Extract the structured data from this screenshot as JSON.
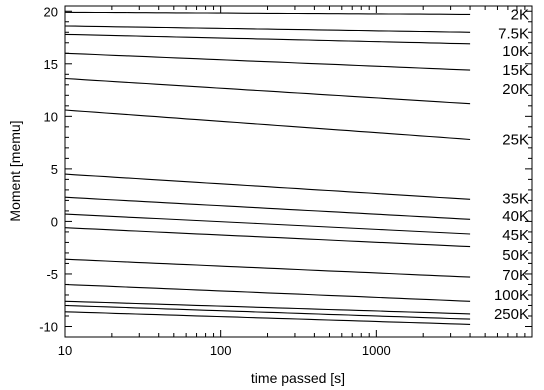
{
  "chart_data": {
    "type": "line",
    "xlabel": "time passed [s]",
    "ylabel": "Moment [memu]",
    "xscale": "log",
    "xlim": [
      10,
      10000
    ],
    "ylim": [
      -11,
      20.5
    ],
    "grid": false,
    "x_ticks": [
      10,
      100,
      1000
    ],
    "x_tick_labels": [
      "10",
      "100",
      "1000"
    ],
    "y_ticks": [
      -10,
      -5,
      0,
      5,
      10,
      15,
      20
    ],
    "y_tick_labels": [
      "-10",
      "-5",
      "0",
      "5",
      "10",
      "15",
      "20"
    ],
    "series": [
      {
        "name": "2K",
        "x": [
          10,
          4000
        ],
        "y": [
          19.9,
          19.7
        ]
      },
      {
        "name": "7.5K",
        "x": [
          10,
          4000
        ],
        "y": [
          18.6,
          18.0
        ]
      },
      {
        "name": "",
        "x": [
          10,
          4000
        ],
        "y": [
          17.8,
          16.9
        ]
      },
      {
        "name": "10K",
        "x": [
          10,
          4000
        ],
        "y": [
          16.0,
          14.4
        ]
      },
      {
        "name": "15K",
        "x": [
          10,
          4000
        ],
        "y": [
          13.6,
          11.2
        ]
      },
      {
        "name": "20K",
        "x": [
          10,
          4000
        ],
        "y": [
          10.6,
          7.8
        ]
      },
      {
        "name": "25K",
        "x": [
          10,
          4000
        ],
        "y": [
          4.5,
          2.1
        ]
      },
      {
        "name": "35K",
        "x": [
          10,
          4000
        ],
        "y": [
          2.3,
          0.2
        ]
      },
      {
        "name": "40K",
        "x": [
          10,
          4000
        ],
        "y": [
          0.7,
          -1.2
        ]
      },
      {
        "name": "45K",
        "x": [
          10,
          4000
        ],
        "y": [
          -0.6,
          -2.4
        ]
      },
      {
        "name": "50K",
        "x": [
          10,
          4000
        ],
        "y": [
          -3.6,
          -5.3
        ]
      },
      {
        "name": "70K",
        "x": [
          10,
          4000
        ],
        "y": [
          -6.0,
          -7.6
        ]
      },
      {
        "name": "100K",
        "x": [
          10,
          4000
        ],
        "y": [
          -7.6,
          -8.8
        ]
      },
      {
        "name": "",
        "x": [
          10,
          4000
        ],
        "y": [
          -8.0,
          -9.3
        ]
      },
      {
        "name": "250K",
        "x": [
          10,
          4000
        ],
        "y": [
          -8.6,
          -9.8
        ]
      }
    ],
    "labels": [
      {
        "text": "2K",
        "y": 19.7
      },
      {
        "text": "7.5K",
        "y": 17.9
      },
      {
        "text": "10K",
        "y": 16.2
      },
      {
        "text": "15K",
        "y": 14.4
      },
      {
        "text": "20K",
        "y": 12.6
      },
      {
        "text": "25K",
        "y": 7.8
      },
      {
        "text": "35K",
        "y": 2.2
      },
      {
        "text": "40K",
        "y": 0.5
      },
      {
        "text": "45K",
        "y": -1.3
      },
      {
        "text": "50K",
        "y": -3.2
      },
      {
        "text": "70K",
        "y": -5.1
      },
      {
        "text": "100K",
        "y": -7.0
      },
      {
        "text": "250K",
        "y": -8.8
      }
    ]
  }
}
